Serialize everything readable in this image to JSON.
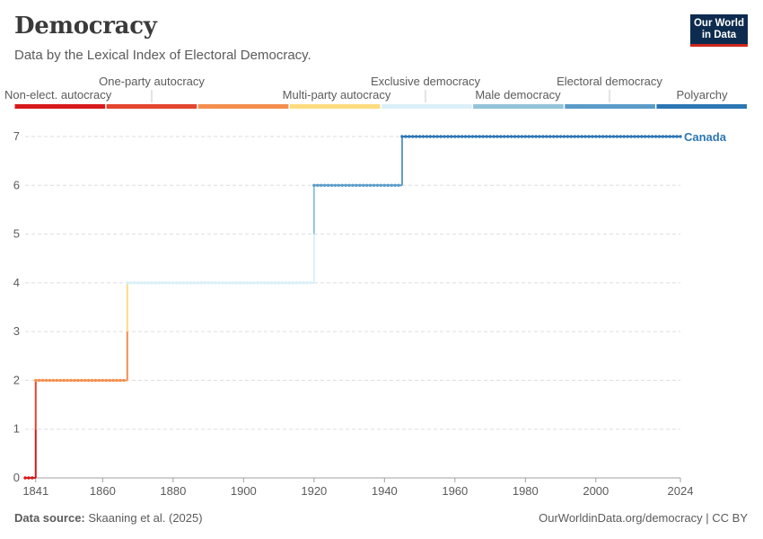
{
  "header": {
    "title": "Democracy",
    "subtitle": "Data by the Lexical Index of Electoral Democracy."
  },
  "logo": {
    "line1": "Our World",
    "line2": "in Data"
  },
  "footer": {
    "source_label": "Data source:",
    "source_value": "Skaaning et al. (2025)",
    "url": "OurWorldinData.org/democracy | CC BY"
  },
  "chart_data": {
    "type": "line",
    "x_tick_labels": [
      "1841",
      "1860",
      "1880",
      "1900",
      "1920",
      "1940",
      "1960",
      "1980",
      "2000",
      "2024"
    ],
    "y_tick_labels": [
      "0",
      "1",
      "2",
      "3",
      "4",
      "5",
      "6",
      "7"
    ],
    "ylim": [
      0,
      7
    ],
    "xlim": [
      1838,
      2024
    ],
    "grid": "horizontal dashed",
    "legend_type": "category color bar",
    "categories": [
      {
        "label": "Non-elect. autocracy",
        "value": 0,
        "color": "#d7191c"
      },
      {
        "label": "One-party autocracy",
        "value": 1,
        "color": "#e4452f"
      },
      {
        "label": "Multi-party autocracy",
        "value": 2,
        "color": "#f48e4e"
      },
      {
        "label": "Exclusive democracy",
        "value": 3,
        "color": "#fddc80"
      },
      {
        "label": "Male democracy",
        "value": 4,
        "color": "#dbeff8"
      },
      {
        "label": "Electoral democracy",
        "value": 5,
        "color": "#93c3d9"
      },
      {
        "label": "Polyarchy",
        "value": 6,
        "color": "#5b9bc8"
      },
      {
        "label": "",
        "value": 7,
        "color": "#2c76b4"
      }
    ],
    "series": [
      {
        "name": "Canada",
        "color": "#2c76b4",
        "steps": [
          {
            "from": 1838,
            "to": 1840,
            "value": 0
          },
          {
            "from": 1841,
            "to": 1866,
            "value": 2
          },
          {
            "from": 1867,
            "to": 1919,
            "value": 4
          },
          {
            "from": 1920,
            "to": 1944,
            "value": 6
          },
          {
            "from": 1945,
            "to": 2024,
            "value": 7
          }
        ]
      }
    ]
  }
}
